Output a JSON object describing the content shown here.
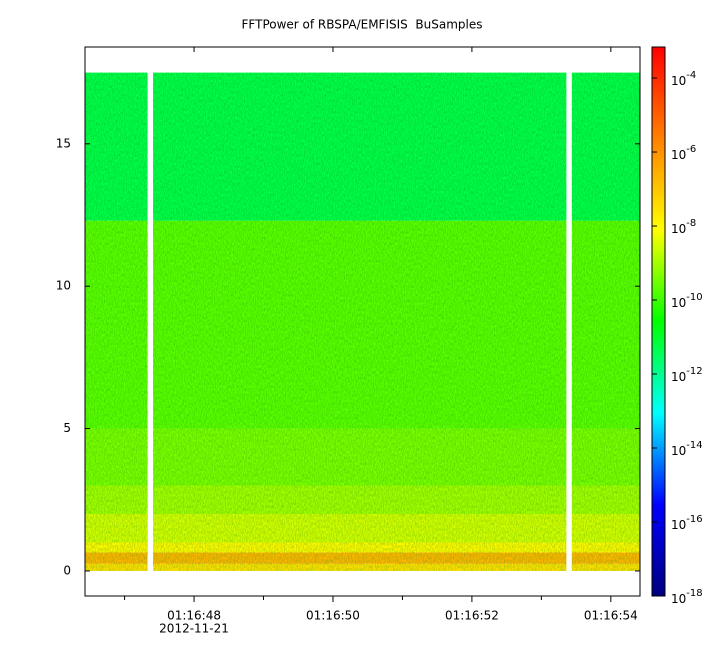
{
  "chart_data": {
    "type": "spectrogram",
    "title": "FFTPower of RBSPA/EMFISIS  BuSamples",
    "xlim": [
      46.43,
      54.42
    ],
    "xticks": [
      {
        "value": 48,
        "label": "01:16:48"
      },
      {
        "value": 50,
        "label": "01:16:50"
      },
      {
        "value": 52,
        "label": "01:16:52"
      },
      {
        "value": 54,
        "label": "01:16:54"
      }
    ],
    "x_minor_ticks": [
      47,
      49,
      51,
      53
    ],
    "x_date_label": "2012-11-21",
    "ylim": [
      -0.88,
      18.4
    ],
    "yticks": [
      0,
      5,
      10,
      15
    ],
    "time_segments": [
      [
        46.43,
        47.33
      ],
      [
        47.41,
        53.36
      ],
      [
        53.44,
        54.42
      ]
    ],
    "freq_edges": [
      0,
      0.25,
      0.65,
      1,
      2,
      3,
      5,
      12.3,
      17.5
    ],
    "values": [
      3e-08,
      2e-07,
      1e-08,
      3e-09,
      1e-09,
      4e-10,
      2e-10,
      5e-12
    ],
    "clim": [
      1e-18,
      0.00069
    ],
    "log_color": true,
    "colormap": [
      "#000080",
      "#0000ff",
      "#00ffff",
      "#00ff00",
      "#ffff00",
      "#ff8000",
      "#ff0000"
    ],
    "cticks": [
      {
        "value": 0.0001,
        "label": "10-4"
      },
      {
        "value": 1e-06,
        "label": "10-6"
      },
      {
        "value": 1e-08,
        "label": "10-8"
      },
      {
        "value": 1e-10,
        "label": "10-10"
      },
      {
        "value": 1e-12,
        "label": "10-12"
      },
      {
        "value": 1e-14,
        "label": "10-14"
      },
      {
        "value": 1e-16,
        "label": "10-16"
      },
      {
        "value": 1e-18,
        "label": "10-18"
      }
    ]
  }
}
